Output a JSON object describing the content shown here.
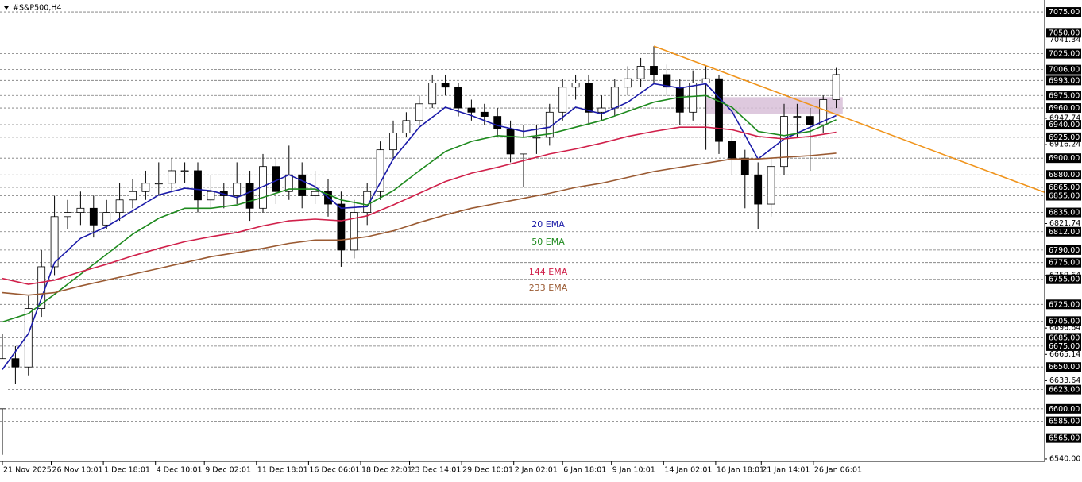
{
  "chart_data": {
    "type": "candlestick",
    "title": "#S&P500,H4",
    "xlim": [
      -0.73,
      320
    ],
    "ylim": [
      6537.1,
      7089.3
    ],
    "xticks": [
      {
        "value": 0,
        "label": "21 Nov 2025"
      },
      {
        "value": 15,
        "label": "26 Nov 10:01"
      },
      {
        "value": 31,
        "label": "1 Dec 18:01"
      },
      {
        "value": 47,
        "label": "4 Dec 10:01"
      },
      {
        "value": 62,
        "label": "9 Dec 02:01"
      },
      {
        "value": 78,
        "label": "11 Dec 18:01"
      },
      {
        "value": 94,
        "label": "16 Dec 06:01"
      },
      {
        "value": 110,
        "label": "18 Dec 22:01"
      },
      {
        "value": 125,
        "label": "23 Dec 14:01"
      },
      {
        "value": 141,
        "label": "29 Dec 10:01"
      },
      {
        "value": 157,
        "label": "2 Jan 02:01"
      },
      {
        "value": 172,
        "label": "6 Jan 18:01"
      },
      {
        "value": 187,
        "label": "9 Jan 10:01"
      },
      {
        "value": 203,
        "label": "14 Jan 02:01"
      },
      {
        "value": 219,
        "label": "16 Jan 18:01"
      },
      {
        "value": 233,
        "label": "21 Jan 14:01"
      },
      {
        "value": 249,
        "label": "26 Jan 06:01"
      }
    ],
    "yticks": [
      7041.34,
      6947.74,
      6916.24,
      6821.74,
      6759.64,
      6696.64,
      6665.14,
      6633.64,
      {
        "value": 6540,
        "label": "6540.00"
      }
    ],
    "levels": [
      {
        "value": 7075,
        "label": "7075.00"
      },
      {
        "value": 7050,
        "label": "7050.00"
      },
      {
        "value": 7025,
        "label": "7025.00"
      },
      {
        "value": 7006,
        "label": "7006.00"
      },
      {
        "value": 6993,
        "label": "6993.00"
      },
      {
        "value": 6975,
        "label": "6975.00"
      },
      {
        "value": 6960,
        "label": "6960.00"
      },
      {
        "value": 6940,
        "label": "6940.00"
      },
      {
        "value": 6925,
        "label": "6925.00"
      },
      {
        "value": 6900,
        "label": "6900.00"
      },
      {
        "value": 6880,
        "label": "6880.00"
      },
      {
        "value": 6865,
        "label": "6865.00"
      },
      {
        "value": 6855,
        "label": "6855.00"
      },
      {
        "value": 6835,
        "label": "6835.00"
      },
      {
        "value": 6812,
        "label": "6812.00"
      },
      {
        "value": 6790,
        "label": "6790.00"
      },
      {
        "value": 6775,
        "label": "6775.00"
      },
      {
        "value": 6755,
        "label": "6755.00"
      },
      {
        "value": 6725,
        "label": "6725.00"
      },
      {
        "value": 6705,
        "label": "6705.00"
      },
      {
        "value": 6685,
        "label": "6685.00"
      },
      {
        "value": 6675,
        "label": "6675.00"
      },
      {
        "value": 6650,
        "label": "6650.00"
      },
      {
        "value": 6623,
        "label": "6623.00"
      },
      {
        "value": 6600,
        "label": "6600.00"
      },
      {
        "value": 6585,
        "label": "6585.00"
      },
      {
        "value": 6565,
        "label": "6565.00"
      }
    ],
    "candles": {
      "x": [
        0,
        4,
        8,
        12,
        16,
        20,
        24,
        28,
        32,
        36,
        40,
        44,
        48,
        52,
        56,
        60,
        64,
        68,
        72,
        76,
        80,
        84,
        88,
        92,
        96,
        100,
        104,
        108,
        112,
        116,
        120,
        124,
        128,
        132,
        136,
        140,
        144,
        148,
        152,
        156,
        160,
        164,
        168,
        172,
        176,
        180,
        184,
        188,
        192,
        196,
        200,
        204,
        208,
        212,
        216,
        220,
        224,
        228,
        232,
        236,
        240,
        244,
        248,
        252,
        256
      ],
      "open": [
        6600,
        6660,
        6650,
        6720,
        6770,
        6830,
        6835,
        6840,
        6820,
        6835,
        6850,
        6860,
        6870,
        6870,
        6885,
        6885,
        6850,
        6860,
        6855,
        6870,
        6840,
        6890,
        6860,
        6880,
        6855,
        6860,
        6845,
        6790,
        6835,
        6860,
        6910,
        6930,
        6945,
        6965,
        6990,
        6985,
        6960,
        6955,
        6950,
        6935,
        6905,
        6925,
        6925,
        6955,
        6985,
        6990,
        6955,
        6960,
        6985,
        6995,
        7010,
        7000,
        6985,
        6955,
        6990,
        6995,
        6920,
        6900,
        6880,
        6845,
        6890,
        6950,
        6950,
        6940,
        6970
      ],
      "high": [
        6690,
        6675,
        6735,
        6790,
        6855,
        6850,
        6860,
        6855,
        6850,
        6870,
        6875,
        6885,
        6895,
        6900,
        6895,
        6895,
        6880,
        6870,
        6895,
        6885,
        6905,
        6900,
        6915,
        6895,
        6885,
        6875,
        6860,
        6850,
        6870,
        6920,
        6945,
        6955,
        6975,
        7000,
        7000,
        6990,
        6970,
        6965,
        6960,
        6945,
        6940,
        6940,
        6965,
        6995,
        7000,
        7000,
        6975,
        6995,
        7010,
        7020,
        7034,
        7012,
        6995,
        7005,
        7010,
        7000,
        6930,
        6910,
        6895,
        6900,
        6965,
        6965,
        6960,
        6975,
        7008
      ],
      "low": [
        6545,
        6630,
        6640,
        6710,
        6760,
        6815,
        6820,
        6805,
        6815,
        6825,
        6840,
        6850,
        6855,
        6860,
        6870,
        6835,
        6840,
        6840,
        6845,
        6825,
        6835,
        6845,
        6850,
        6840,
        6845,
        6830,
        6770,
        6780,
        6820,
        6850,
        6900,
        6925,
        6940,
        6960,
        6975,
        6950,
        6945,
        6940,
        6925,
        6895,
        6865,
        6905,
        6915,
        6945,
        6970,
        6940,
        6945,
        6950,
        6975,
        6985,
        6990,
        6975,
        6940,
        6945,
        6910,
        6905,
        6880,
        6840,
        6815,
        6830,
        6880,
        6925,
        6885,
        6930,
        6960
      ],
      "close": [
        6660,
        6650,
        6720,
        6770,
        6830,
        6835,
        6840,
        6820,
        6835,
        6850,
        6860,
        6870,
        6870,
        6885,
        6885,
        6850,
        6860,
        6855,
        6870,
        6840,
        6890,
        6860,
        6880,
        6855,
        6860,
        6845,
        6790,
        6835,
        6860,
        6910,
        6930,
        6945,
        6965,
        6990,
        6985,
        6960,
        6955,
        6950,
        6935,
        6905,
        6925,
        6925,
        6955,
        6985,
        6990,
        6955,
        6960,
        6985,
        6995,
        7010,
        7000,
        6985,
        6955,
        6990,
        6995,
        6920,
        6900,
        6880,
        6845,
        6890,
        6950,
        6950,
        6940,
        6970,
        7000
      ]
    },
    "series_x": [
      0,
      8,
      16,
      24,
      32,
      40,
      48,
      56,
      64,
      72,
      80,
      88,
      96,
      104,
      112,
      120,
      128,
      136,
      144,
      152,
      160,
      168,
      176,
      184,
      192,
      200,
      208,
      216,
      224,
      232,
      240,
      248,
      256
    ],
    "series": [
      {
        "name": "20 EMA",
        "color": "#1a1aa8",
        "values": [
          6647,
          6690,
          6775,
          6804,
          6818,
          6837,
          6856,
          6864,
          6861,
          6853,
          6866,
          6880,
          6866,
          6840,
          6842,
          6899,
          6937,
          6961,
          6951,
          6939,
          6932,
          6937,
          6961,
          6953,
          6967,
          6989,
          6984,
          6989,
          6956,
          6899,
          6923,
          6937,
          6951
        ]
      },
      {
        "name": "50 EMA",
        "color": "#1e8a1e",
        "values": [
          6704,
          6714,
          6737,
          6761,
          6785,
          6809,
          6828,
          6840,
          6840,
          6844,
          6853,
          6863,
          6863,
          6850,
          6844,
          6861,
          6885,
          6908,
          6920,
          6927,
          6925,
          6929,
          6937,
          6945,
          6956,
          6967,
          6973,
          6975,
          6961,
          6932,
          6927,
          6932,
          6946
        ]
      },
      {
        "name": "144 EMA",
        "color": "#d0204a",
        "values": [
          6756,
          6749,
          6754,
          6764,
          6773,
          6783,
          6792,
          6800,
          6806,
          6811,
          6819,
          6825,
          6827,
          6825,
          6831,
          6844,
          6858,
          6872,
          6882,
          6889,
          6897,
          6905,
          6911,
          6918,
          6926,
          6932,
          6937,
          6937,
          6934,
          6926,
          6923,
          6926,
          6931
        ]
      },
      {
        "name": "233 EMA",
        "color": "#9a5a32",
        "values": [
          6739,
          6736,
          6739,
          6747,
          6754,
          6761,
          6768,
          6775,
          6782,
          6787,
          6792,
          6798,
          6802,
          6802,
          6806,
          6813,
          6823,
          6832,
          6840,
          6846,
          6852,
          6858,
          6865,
          6870,
          6877,
          6884,
          6889,
          6894,
          6899,
          6899,
          6901,
          6903,
          6906
        ]
      }
    ],
    "trendline": {
      "color": "#f0941c",
      "x": [
        200,
        320
      ],
      "values": [
        7034,
        6859
      ]
    },
    "zone": {
      "color": "#d8bfd8",
      "x": [
        216,
        258
      ],
      "values": [
        6953,
        6973
      ]
    },
    "grid": true
  }
}
